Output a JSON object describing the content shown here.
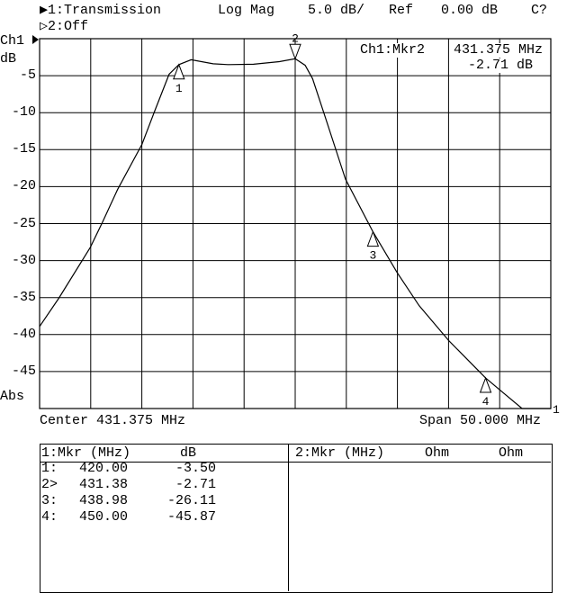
{
  "header": {
    "channel1": "▶1:Transmission",
    "format": "Log Mag",
    "scale": "5.0 dB/",
    "ref_label": "Ref",
    "ref_value": "0.00 dB",
    "status": "C?",
    "channel2": "▷2:Off"
  },
  "axis": {
    "channel_label": "Ch1",
    "unit": "dB",
    "abs_label": "Abs",
    "center": "Center 431.375 MHz",
    "span": "Span 50.000 MHz",
    "ref_marker": "1"
  },
  "active_marker": {
    "label": "Ch1:Mkr2",
    "freq": "431.375 MHz",
    "value": "-2.71 dB"
  },
  "marker_table": {
    "left_header": [
      "1:Mkr (MHz)",
      "dB"
    ],
    "right_header": [
      "2:Mkr (MHz)",
      "Ohm",
      "Ohm"
    ],
    "rows": [
      {
        "id": "1:",
        "freq": "420.00",
        "value": "-3.50"
      },
      {
        "id": "2>",
        "freq": "431.38",
        "value": "-2.71"
      },
      {
        "id": "3:",
        "freq": "438.98",
        "value": "-26.11"
      },
      {
        "id": "4:",
        "freq": "450.00",
        "value": "-45.87"
      }
    ]
  },
  "chart_data": {
    "type": "line",
    "xlim": [
      406.375,
      456.375
    ],
    "ylim": [
      -50,
      0
    ],
    "x_unit": "MHz",
    "ylabel": "dB",
    "grid": true,
    "ytick_labels": [
      "-5",
      "-10",
      "-15",
      "-20",
      "-25",
      "-30",
      "-35",
      "-40",
      "-45"
    ],
    "yticks": [
      -5,
      -10,
      -15,
      -20,
      -25,
      -30,
      -35,
      -40,
      -45
    ],
    "colors": {
      "trace": "#000000",
      "grid": "#000000",
      "background": "#ffffff"
    },
    "series": [
      {
        "x": [
          406.375,
          408.25,
          411.34,
          412.56,
          414.0,
          416.38,
          417.6,
          419.04,
          420.0,
          421.2,
          423.35,
          424.8,
          427.3,
          429.83,
          431.375,
          432.35,
          433.07,
          434.15,
          436.3,
          438.98,
          441.34,
          443.5,
          446.38,
          450.0,
          451.4,
          453.57,
          456.375
        ],
        "y": [
          -38.9,
          -35.1,
          -28.2,
          -24.7,
          -20.4,
          -14.3,
          -9.9,
          -4.8,
          -3.5,
          -2.85,
          -3.4,
          -3.5,
          -3.46,
          -3.1,
          -2.71,
          -3.6,
          -5.4,
          -9.9,
          -19.0,
          -26.11,
          -31.6,
          -36.1,
          -40.8,
          -45.87,
          -47.5,
          -50,
          -50
        ]
      }
    ],
    "markers": [
      {
        "label": "1",
        "x": 420.0,
        "y": -3.5,
        "direction": "up"
      },
      {
        "label": "2",
        "x": 431.375,
        "y": -2.71,
        "direction": "down"
      },
      {
        "label": "3",
        "x": 438.98,
        "y": -26.11,
        "direction": "up"
      },
      {
        "label": "4",
        "x": 450.0,
        "y": -45.87,
        "direction": "up"
      }
    ]
  }
}
